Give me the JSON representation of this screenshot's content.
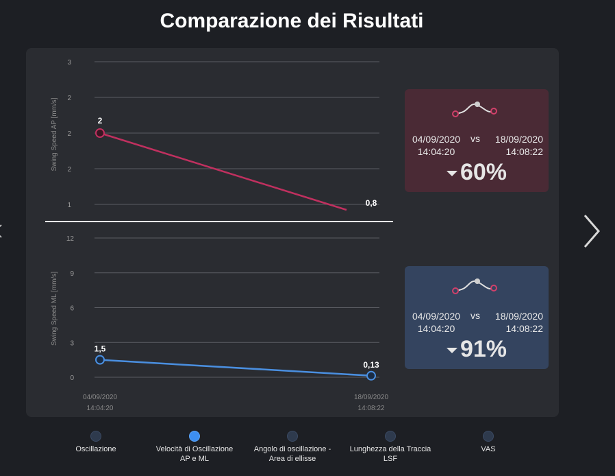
{
  "title": "Comparazione dei Risultati",
  "chart_data": [
    {
      "type": "line",
      "ylabel": "Swing Speed AP [mm/s]",
      "ytick_labels": [
        "1",
        "2",
        "2",
        "2",
        "3"
      ],
      "categories": [
        "04/09/2020 14:04:20",
        "18/09/2020 14:08:22"
      ],
      "series": [
        {
          "values": [
            2,
            0.8
          ],
          "color": "#c0305f"
        }
      ],
      "data_labels": [
        "2",
        "0,8"
      ],
      "grid": true
    },
    {
      "type": "line",
      "ylabel": "Swing Speed ML [mm/s]",
      "yticks": [
        0,
        3,
        6,
        9,
        12
      ],
      "ylim": [
        0,
        12
      ],
      "categories": [
        "04/09/2020 14:04:20",
        "18/09/2020 14:08:22"
      ],
      "x_labels": [
        [
          "04/09/2020",
          "14:04:20"
        ],
        [
          "18/09/2020",
          "14:08:22"
        ]
      ],
      "series": [
        {
          "values": [
            1.5,
            0.13
          ],
          "color": "#4a8fe0"
        }
      ],
      "data_labels": [
        "1,5",
        "0,13"
      ],
      "grid": true
    }
  ],
  "cards": {
    "ap": {
      "date_left": "04/09/2020",
      "time_left": "14:04:20",
      "vs": "vs",
      "date_right": "18/09/2020",
      "time_right": "14:08:22",
      "delta": "60%",
      "direction": "down",
      "color": "#4a2a35"
    },
    "ml": {
      "date_left": "04/09/2020",
      "time_left": "14:04:20",
      "vs": "vs",
      "date_right": "18/09/2020",
      "time_right": "14:08:22",
      "delta": "91%",
      "direction": "down",
      "color": "#34445f"
    }
  },
  "carousel": {
    "items": [
      {
        "line1": "Oscillazione",
        "line2": "",
        "active": false
      },
      {
        "line1": "Velocità di Oscillazione",
        "line2": "AP e ML",
        "active": true
      },
      {
        "line1": "Angolo di oscillazione -",
        "line2": "Area di ellisse",
        "active": false
      },
      {
        "line1": "Lunghezza della Traccia",
        "line2": "LSF",
        "active": false
      },
      {
        "line1": "VAS",
        "line2": "",
        "active": false
      }
    ]
  },
  "colors": {
    "accent": "#3d8ef0",
    "ap_line": "#c0305f",
    "ml_line": "#4a8fe0"
  },
  "icons": {
    "next": "chevron-right-icon",
    "prev": "chevron-left-icon",
    "trend": "sparkline-icon"
  }
}
